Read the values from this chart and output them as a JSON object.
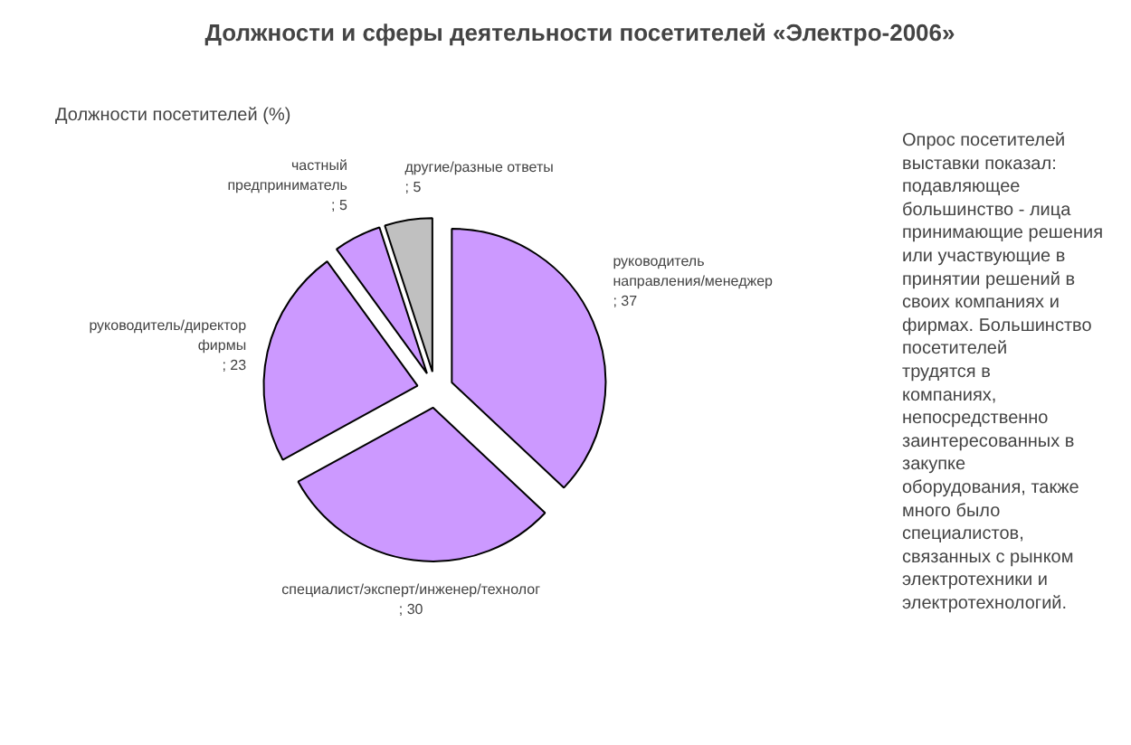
{
  "chart_data": {
    "type": "pie",
    "title": "Должности и сферы деятельности посетителей «Электро-2006»",
    "subtitle": "Должности посетителей (%)",
    "categories": [
      "руководитель направления/менеджер",
      "специалист/эксперт/инженер/технолог",
      "руководитель/директор фирмы",
      "частный предприниматель",
      "другие/разные ответы"
    ],
    "values": [
      37,
      30,
      23,
      5,
      5
    ],
    "colors": [
      "#cc99ff",
      "#cc99ff",
      "#cc99ff",
      "#cc99ff",
      "#c0c0c0"
    ],
    "value_labels": [
      "; 37",
      "; 30",
      "; 23",
      "; 5",
      "; 5"
    ],
    "annotations": [
      "Опрос посетителей выставки показал: подавляющее большинство - лица принимающие решения или участвующие в принятии решений в своих компаниях и фирмах. Большинство посетителей трудятся в компаниях, непосредственно заинтересованных в закупке оборудования, также много было специалистов, связанных с рынком электротехники и электротехнологий."
    ]
  }
}
